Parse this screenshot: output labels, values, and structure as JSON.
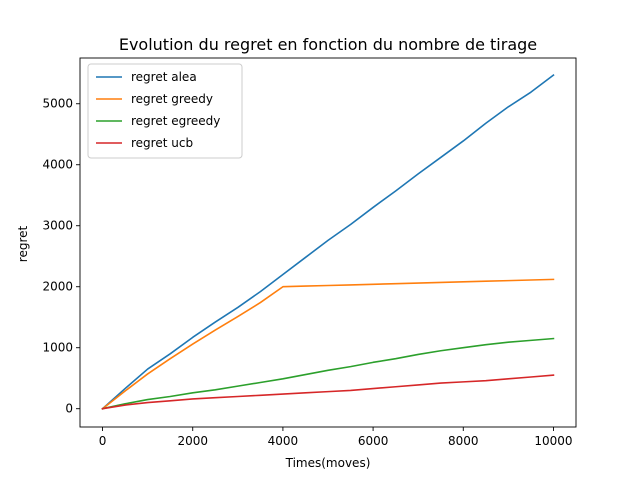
{
  "chart_data": {
    "type": "line",
    "title": "Evolution du regret en fonction du nombre de tirage",
    "xlabel": "Times(moves)",
    "ylabel": "regret",
    "xlim": [
      -500,
      10500
    ],
    "ylim": [
      -300,
      5750
    ],
    "xticks": [
      0,
      2000,
      4000,
      6000,
      8000,
      10000
    ],
    "yticks": [
      0,
      1000,
      2000,
      3000,
      4000,
      5000
    ],
    "grid": false,
    "legend_position": "top-left",
    "series": [
      {
        "name": "regret alea",
        "color": "#1f77b4",
        "x": [
          0,
          500,
          1000,
          1500,
          2000,
          2500,
          3000,
          3500,
          4000,
          4500,
          5000,
          5500,
          6000,
          6500,
          7000,
          7500,
          8000,
          8500,
          9000,
          9500,
          10000
        ],
        "y": [
          0,
          330,
          650,
          900,
          1170,
          1420,
          1660,
          1920,
          2200,
          2480,
          2760,
          3020,
          3300,
          3570,
          3850,
          4120,
          4390,
          4680,
          4950,
          5190,
          5470
        ]
      },
      {
        "name": "regret greedy",
        "color": "#ff7f0e",
        "x": [
          0,
          500,
          1000,
          1500,
          2000,
          2500,
          3000,
          3500,
          4000,
          4500,
          5000,
          5500,
          6000,
          6500,
          7000,
          7500,
          8000,
          8500,
          9000,
          9500,
          10000
        ],
        "y": [
          0,
          290,
          570,
          820,
          1060,
          1290,
          1510,
          1740,
          2000,
          2010,
          2020,
          2030,
          2040,
          2050,
          2060,
          2070,
          2080,
          2090,
          2100,
          2110,
          2120
        ]
      },
      {
        "name": "regret egreedy",
        "color": "#2ca02c",
        "x": [
          0,
          500,
          1000,
          1500,
          2000,
          2500,
          3000,
          3500,
          4000,
          4500,
          5000,
          5500,
          6000,
          6500,
          7000,
          7500,
          8000,
          8500,
          9000,
          9500,
          10000
        ],
        "y": [
          0,
          80,
          150,
          200,
          260,
          310,
          370,
          430,
          490,
          560,
          630,
          690,
          760,
          820,
          890,
          950,
          1000,
          1050,
          1090,
          1120,
          1150
        ]
      },
      {
        "name": "regret ucb",
        "color": "#d62728",
        "x": [
          0,
          500,
          1000,
          1500,
          2000,
          2500,
          3000,
          3500,
          4000,
          4500,
          5000,
          5500,
          6000,
          6500,
          7000,
          7500,
          8000,
          8500,
          9000,
          9500,
          10000
        ],
        "y": [
          0,
          60,
          100,
          130,
          160,
          180,
          200,
          220,
          240,
          260,
          280,
          300,
          330,
          360,
          390,
          420,
          440,
          460,
          490,
          520,
          550
        ]
      }
    ]
  }
}
